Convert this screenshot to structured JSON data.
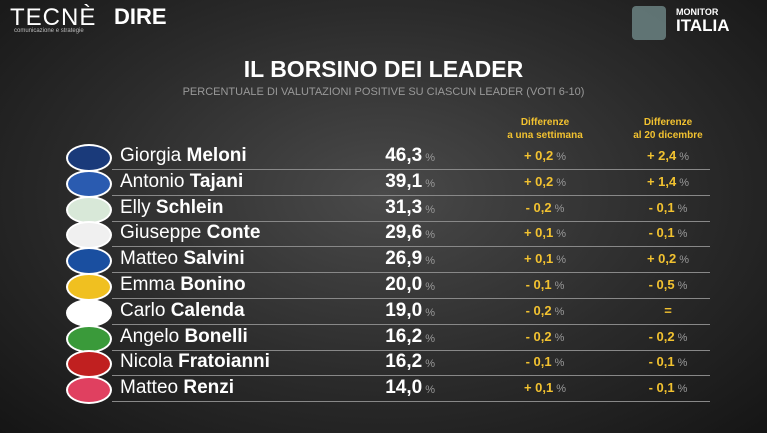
{
  "header": {
    "brand_left": "TECNÈ",
    "brand_left_sub": "comunicazione e strategie",
    "brand_mid": "DIRE",
    "brand_right_top": "MONITOR",
    "brand_right_bottom": "ITALIA"
  },
  "title": "IL BORSINO DEI LEADER",
  "subtitle": "PERCENTUALE DI VALUTAZIONI POSITIVE SU CIASCUN LEADER (VOTI 6-10)",
  "table": {
    "columns": [
      {
        "line1": "Differenze",
        "line2": "a una settimana"
      },
      {
        "line1": "Differenze",
        "line2": "al 20 dicembre"
      }
    ],
    "rows": [
      {
        "first": "Giorgia",
        "last": "Meloni",
        "score": "46,3",
        "unit": "%",
        "diff_week": {
          "value": "+ 0,2",
          "unit": "%"
        },
        "diff_dec": {
          "value": "+ 2,4",
          "unit": "%"
        }
      },
      {
        "first": "Antonio",
        "last": "Tajani",
        "score": "39,1",
        "unit": "%",
        "diff_week": {
          "value": "+ 0,2",
          "unit": "%"
        },
        "diff_dec": {
          "value": "+ 1,4",
          "unit": "%"
        }
      },
      {
        "first": "Elly",
        "last": "Schlein",
        "score": "31,3",
        "unit": "%",
        "diff_week": {
          "value": "- 0,2",
          "unit": "%"
        },
        "diff_dec": {
          "value": "- 0,1",
          "unit": "%"
        }
      },
      {
        "first": "Giuseppe",
        "last": "Conte",
        "score": "29,6",
        "unit": "%",
        "diff_week": {
          "value": "+ 0,1",
          "unit": "%"
        },
        "diff_dec": {
          "value": "- 0,1",
          "unit": "%"
        }
      },
      {
        "first": "Matteo",
        "last": "Salvini",
        "score": "26,9",
        "unit": "%",
        "diff_week": {
          "value": "+ 0,1",
          "unit": "%"
        },
        "diff_dec": {
          "value": "+ 0,2",
          "unit": "%"
        }
      },
      {
        "first": "Emma",
        "last": "Bonino",
        "score": "20,0",
        "unit": "%",
        "diff_week": {
          "value": "- 0,1",
          "unit": "%"
        },
        "diff_dec": {
          "value": "- 0,5",
          "unit": "%"
        }
      },
      {
        "first": "Carlo",
        "last": "Calenda",
        "score": "19,0",
        "unit": "%",
        "diff_week": {
          "value": "- 0,2",
          "unit": "%"
        },
        "diff_dec": {
          "value": "="
        }
      },
      {
        "first": "Angelo",
        "last": "Bonelli",
        "score": "16,2",
        "unit": "%",
        "diff_week": {
          "value": "- 0,2",
          "unit": "%"
        },
        "diff_dec": {
          "value": "- 0,2",
          "unit": "%"
        }
      },
      {
        "first": "Nicola",
        "last": "Fratoianni",
        "score": "16,2",
        "unit": "%",
        "diff_week": {
          "value": "- 0,1",
          "unit": "%"
        },
        "diff_dec": {
          "value": "- 0,1",
          "unit": "%"
        }
      },
      {
        "first": "Matteo",
        "last": "Renzi",
        "score": "14,0",
        "unit": "%",
        "diff_week": {
          "value": "+ 0,1",
          "unit": "%"
        },
        "diff_dec": {
          "value": "- 0,1",
          "unit": "%"
        }
      }
    ]
  }
}
